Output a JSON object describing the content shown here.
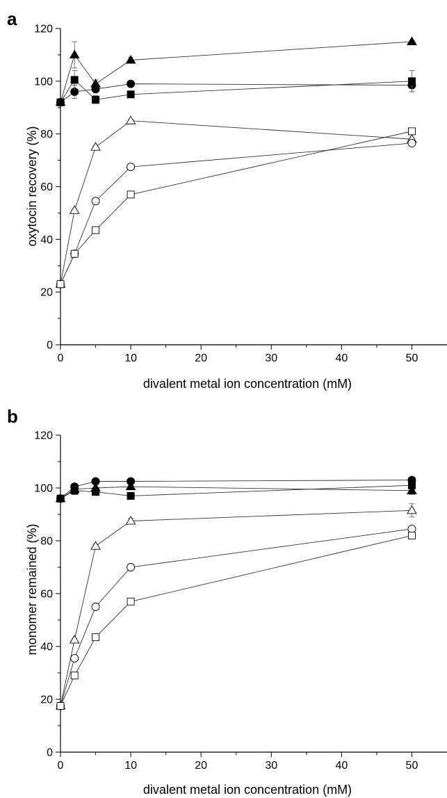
{
  "chart_data": [
    {
      "type": "line",
      "panel_label": "a",
      "xlabel": "divalent metal ion concentration (mM)",
      "ylabel": "oxytocin recovery (%)",
      "xlim": [
        0,
        55
      ],
      "ylim": [
        0,
        120
      ],
      "xticks": [
        0,
        10,
        20,
        30,
        40,
        50
      ],
      "yticks": [
        0,
        20,
        40,
        60,
        80,
        100,
        120
      ],
      "grid": false,
      "legend": "none",
      "series": [
        {
          "marker": "filled-triangle",
          "x": [
            0,
            2,
            5,
            10,
            50
          ],
          "y": [
            92,
            110,
            99,
            108,
            115
          ],
          "err": [
            0,
            5,
            1.5,
            1,
            0.5
          ]
        },
        {
          "marker": "filled-circle",
          "x": [
            0,
            2,
            5,
            10,
            50
          ],
          "y": [
            92,
            96,
            97,
            99,
            98.5
          ],
          "err": [
            0,
            2.5,
            1,
            0.5,
            2.5
          ]
        },
        {
          "marker": "filled-square",
          "x": [
            0,
            2,
            5,
            10,
            50
          ],
          "y": [
            92,
            100.5,
            93,
            95,
            100
          ],
          "err": [
            0,
            3.5,
            1.5,
            1,
            4
          ]
        },
        {
          "marker": "open-triangle",
          "x": [
            0,
            2,
            5,
            10,
            50
          ],
          "y": [
            23,
            51,
            75,
            85,
            78
          ],
          "err": [
            0,
            0.5,
            0.5,
            0.5,
            0.5
          ]
        },
        {
          "marker": "open-circle",
          "x": [
            0,
            2,
            5,
            10,
            50
          ],
          "y": [
            23,
            34.5,
            54.5,
            67.5,
            76.5
          ],
          "err": [
            0,
            1,
            0.5,
            0.5,
            0.5
          ]
        },
        {
          "marker": "open-square",
          "x": [
            0,
            2,
            5,
            10,
            50
          ],
          "y": [
            23,
            34.5,
            43.5,
            57,
            81
          ],
          "err": [
            0,
            0.5,
            0.5,
            0.5,
            0.5
          ]
        }
      ]
    },
    {
      "type": "line",
      "panel_label": "b",
      "xlabel": "divalent metal ion concentration (mM)",
      "ylabel": "monomer remained (%)",
      "xlim": [
        0,
        55
      ],
      "ylim": [
        0,
        120
      ],
      "xticks": [
        0,
        10,
        20,
        30,
        40,
        50
      ],
      "yticks": [
        0,
        20,
        40,
        60,
        80,
        100,
        120
      ],
      "grid": false,
      "legend": "none",
      "series": [
        {
          "marker": "filled-triangle",
          "x": [
            0,
            2,
            5,
            10,
            50
          ],
          "y": [
            96,
            99.5,
            100,
            100.5,
            99
          ],
          "err": [
            0,
            1,
            0.5,
            0.5,
            1.5
          ]
        },
        {
          "marker": "filled-circle",
          "x": [
            0,
            2,
            5,
            10,
            50
          ],
          "y": [
            96,
            100.5,
            102.5,
            102.5,
            103
          ],
          "err": [
            0,
            0.5,
            0.5,
            0.5,
            0.5
          ]
        },
        {
          "marker": "filled-square",
          "x": [
            0,
            2,
            5,
            10,
            50
          ],
          "y": [
            96,
            99,
            98.5,
            97,
            101
          ],
          "err": [
            0,
            1.5,
            1,
            0.5,
            0.5
          ]
        },
        {
          "marker": "open-triangle",
          "x": [
            0,
            2,
            5,
            10,
            50
          ],
          "y": [
            17.5,
            42.5,
            78,
            87.5,
            91.5
          ],
          "err": [
            0,
            0.5,
            0.5,
            1,
            2.5
          ]
        },
        {
          "marker": "open-circle",
          "x": [
            0,
            2,
            5,
            10,
            50
          ],
          "y": [
            17.5,
            35.5,
            55,
            70,
            84.5
          ],
          "err": [
            0,
            1,
            0.5,
            0.5,
            1
          ]
        },
        {
          "marker": "open-square",
          "x": [
            0,
            2,
            5,
            10,
            50
          ],
          "y": [
            17.5,
            29,
            43.5,
            57,
            82
          ],
          "err": [
            0,
            0.5,
            0.5,
            0.5,
            0.5
          ]
        }
      ]
    }
  ]
}
